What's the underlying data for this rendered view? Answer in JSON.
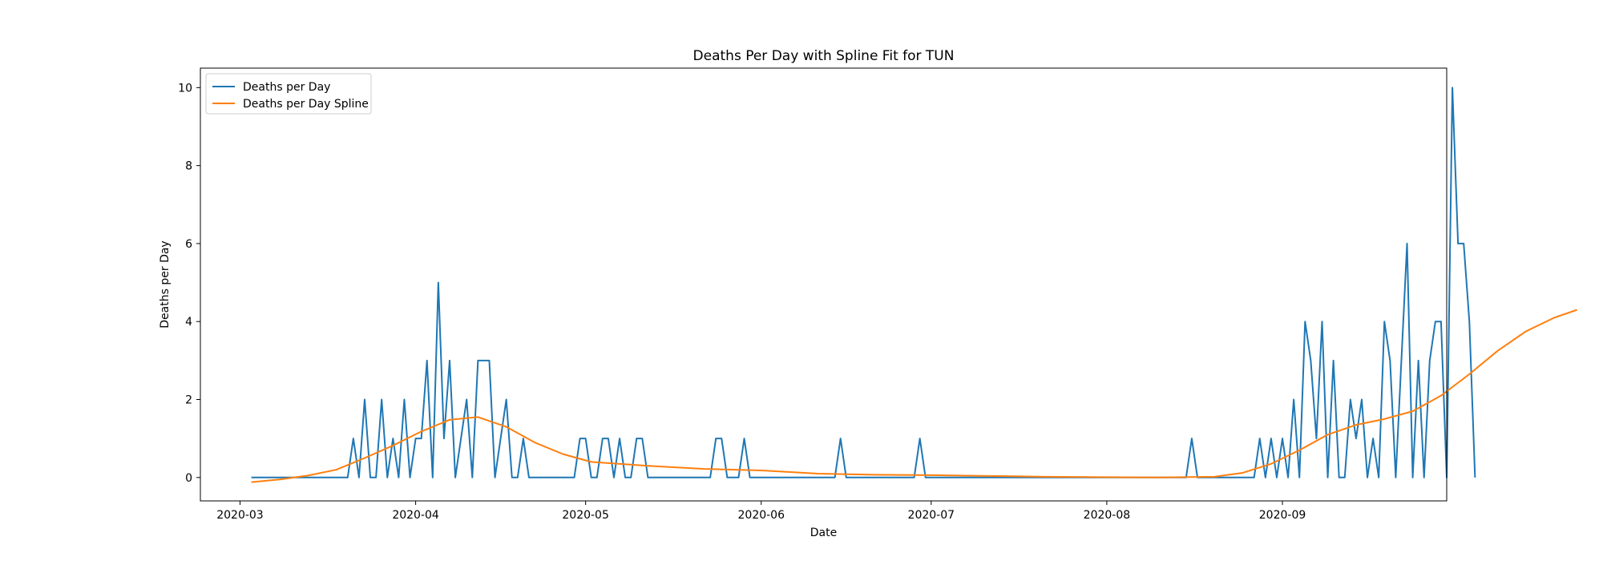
{
  "chart_data": {
    "type": "line",
    "title": "Deaths Per Day with Spline Fit for TUN",
    "xlabel": "Date",
    "ylabel": "Deaths per Day",
    "x_start": "2020-03-03",
    "xlim": [
      "2020-02-23",
      "2020-09-30"
    ],
    "ylim": [
      -0.6,
      10.5
    ],
    "x_ticks": [
      "2020-03-01",
      "2020-04-01",
      "2020-05-01",
      "2020-06-01",
      "2020-07-01",
      "2020-08-01",
      "2020-09-01"
    ],
    "x_tick_labels": [
      "2020-03",
      "2020-04",
      "2020-05",
      "2020-06",
      "2020-07",
      "2020-08",
      "2020-09"
    ],
    "y_ticks": [
      0,
      2,
      4,
      6,
      8,
      10
    ],
    "y_tick_labels": [
      "0",
      "2",
      "4",
      "6",
      "8",
      "10"
    ],
    "grid": false,
    "legend_position": "top-left",
    "series": [
      {
        "name": "Deaths per Day",
        "color": "#1f77b4",
        "values": [
          0,
          0,
          0,
          0,
          0,
          0,
          0,
          0,
          0,
          0,
          0,
          0,
          0,
          0,
          0,
          0,
          0,
          0,
          1,
          0,
          2,
          0,
          0,
          2,
          0,
          1,
          0,
          2,
          0,
          1,
          1,
          3,
          0,
          5,
          1,
          3,
          0,
          1,
          2,
          0,
          3,
          3,
          3,
          0,
          1,
          2,
          0,
          0,
          1,
          0,
          0,
          0,
          0,
          0,
          0,
          0,
          0,
          0,
          1,
          1,
          0,
          0,
          1,
          1,
          0,
          1,
          0,
          0,
          1,
          1,
          0,
          0,
          0,
          0,
          0,
          0,
          0,
          0,
          0,
          0,
          0,
          0,
          1,
          1,
          0,
          0,
          0,
          1,
          0,
          0,
          0,
          0,
          0,
          0,
          0,
          0,
          0,
          0,
          0,
          0,
          0,
          0,
          0,
          0,
          1,
          0,
          0,
          0,
          0,
          0,
          0,
          0,
          0,
          0,
          0,
          0,
          0,
          0,
          1,
          0,
          0,
          0,
          0,
          0,
          0,
          0,
          0,
          0,
          0,
          0,
          0,
          0,
          0,
          0,
          0,
          0,
          0,
          0,
          0,
          0,
          0,
          0,
          0,
          0,
          0,
          0,
          0,
          0,
          0,
          0,
          0,
          0,
          0,
          0,
          0,
          0,
          0,
          0,
          0,
          0,
          0,
          0,
          0,
          0,
          0,
          0,
          1,
          0,
          0,
          0,
          0,
          0,
          0,
          0,
          0,
          0,
          0,
          0,
          1,
          0,
          1,
          0,
          1,
          0,
          2,
          0,
          4,
          3,
          1,
          4,
          0,
          3,
          0,
          0,
          2,
          1,
          2,
          0,
          1,
          0,
          4,
          3,
          0,
          3,
          6,
          0,
          3,
          0,
          3,
          4,
          4,
          0,
          10,
          6,
          6,
          4,
          0
        ]
      },
      {
        "name": "Deaths per Day Spline",
        "color": "#ff7f0e",
        "x_days": [
          0,
          5,
          10,
          15,
          20,
          25,
          30,
          35,
          40,
          45,
          50,
          55,
          60,
          70,
          80,
          90,
          100,
          110,
          120,
          130,
          140,
          150,
          160,
          170,
          175,
          180,
          185,
          190,
          195,
          200,
          205,
          210,
          215,
          220,
          225,
          230,
          234
        ],
        "values": [
          -0.12,
          -0.05,
          0.05,
          0.2,
          0.5,
          0.82,
          1.18,
          1.48,
          1.55,
          1.3,
          0.9,
          0.6,
          0.4,
          0.3,
          0.22,
          0.18,
          0.1,
          0.07,
          0.06,
          0.04,
          0.02,
          0.01,
          0.0,
          0.02,
          0.12,
          0.35,
          0.7,
          1.1,
          1.35,
          1.5,
          1.7,
          2.1,
          2.65,
          3.25,
          3.75,
          4.1,
          4.3
        ]
      }
    ]
  }
}
